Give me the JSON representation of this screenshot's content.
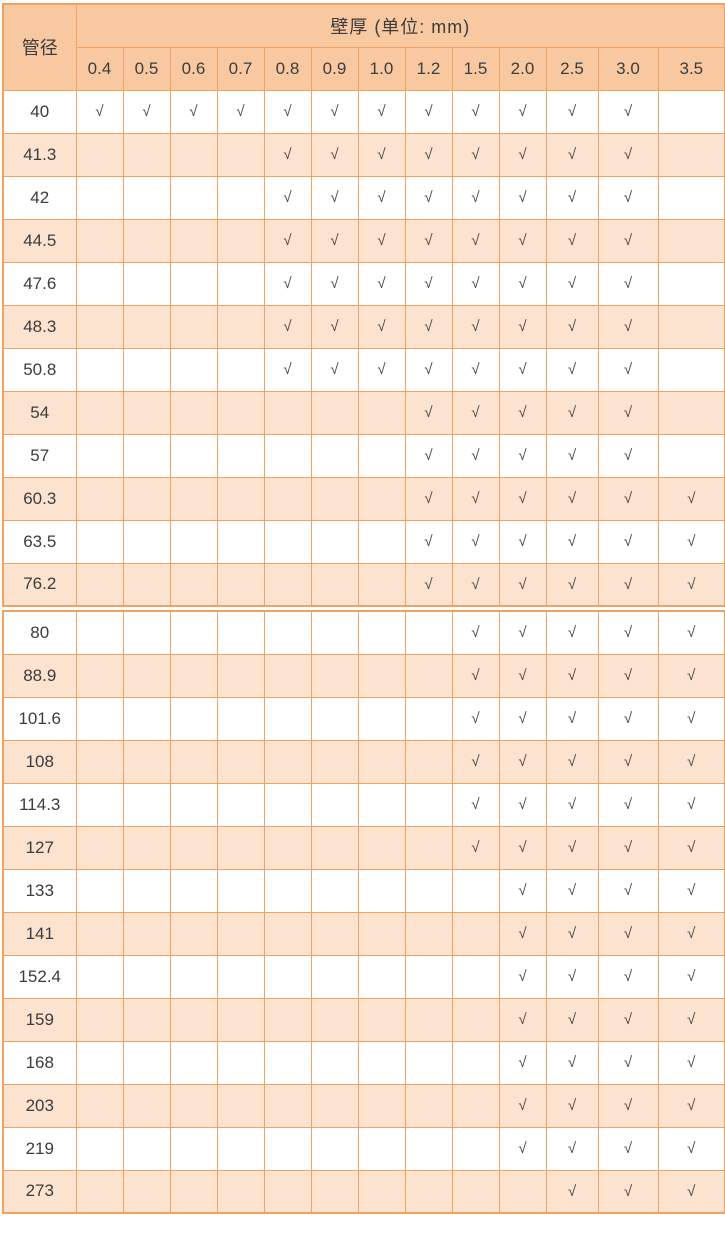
{
  "table": {
    "diameter_header": "管径",
    "thickness_header": "壁厚 (单位: mm)",
    "thickness_values": [
      "0.4",
      "0.5",
      "0.6",
      "0.7",
      "0.8",
      "0.9",
      "1.0",
      "1.2",
      "1.5",
      "2.0",
      "2.5",
      "3.0",
      "3.5"
    ],
    "check_symbol": "√",
    "colors": {
      "header_bg": "#F8C9A1",
      "alt_row_bg": "#FBE3CF",
      "border": "#F0A263",
      "text": "#3C3C3C"
    },
    "sections": [
      {
        "rows": [
          {
            "diameter": "40",
            "checks": [
              1,
              1,
              1,
              1,
              1,
              1,
              1,
              1,
              1,
              1,
              1,
              1,
              0
            ]
          },
          {
            "diameter": "41.3",
            "checks": [
              0,
              0,
              0,
              0,
              1,
              1,
              1,
              1,
              1,
              1,
              1,
              1,
              0
            ]
          },
          {
            "diameter": "42",
            "checks": [
              0,
              0,
              0,
              0,
              1,
              1,
              1,
              1,
              1,
              1,
              1,
              1,
              0
            ]
          },
          {
            "diameter": "44.5",
            "checks": [
              0,
              0,
              0,
              0,
              1,
              1,
              1,
              1,
              1,
              1,
              1,
              1,
              0
            ]
          },
          {
            "diameter": "47.6",
            "checks": [
              0,
              0,
              0,
              0,
              1,
              1,
              1,
              1,
              1,
              1,
              1,
              1,
              0
            ]
          },
          {
            "diameter": "48.3",
            "checks": [
              0,
              0,
              0,
              0,
              1,
              1,
              1,
              1,
              1,
              1,
              1,
              1,
              0
            ]
          },
          {
            "diameter": "50.8",
            "checks": [
              0,
              0,
              0,
              0,
              1,
              1,
              1,
              1,
              1,
              1,
              1,
              1,
              0
            ]
          },
          {
            "diameter": "54",
            "checks": [
              0,
              0,
              0,
              0,
              0,
              0,
              0,
              1,
              1,
              1,
              1,
              1,
              0
            ]
          },
          {
            "diameter": "57",
            "checks": [
              0,
              0,
              0,
              0,
              0,
              0,
              0,
              1,
              1,
              1,
              1,
              1,
              0
            ]
          },
          {
            "diameter": "60.3",
            "checks": [
              0,
              0,
              0,
              0,
              0,
              0,
              0,
              1,
              1,
              1,
              1,
              1,
              1
            ]
          },
          {
            "diameter": "63.5",
            "checks": [
              0,
              0,
              0,
              0,
              0,
              0,
              0,
              1,
              1,
              1,
              1,
              1,
              1
            ]
          },
          {
            "diameter": "76.2",
            "checks": [
              0,
              0,
              0,
              0,
              0,
              0,
              0,
              1,
              1,
              1,
              1,
              1,
              1
            ]
          }
        ]
      },
      {
        "rows": [
          {
            "diameter": "80",
            "checks": [
              0,
              0,
              0,
              0,
              0,
              0,
              0,
              0,
              1,
              1,
              1,
              1,
              1
            ]
          },
          {
            "diameter": "88.9",
            "checks": [
              0,
              0,
              0,
              0,
              0,
              0,
              0,
              0,
              1,
              1,
              1,
              1,
              1
            ]
          },
          {
            "diameter": "101.6",
            "checks": [
              0,
              0,
              0,
              0,
              0,
              0,
              0,
              0,
              1,
              1,
              1,
              1,
              1
            ]
          },
          {
            "diameter": "108",
            "checks": [
              0,
              0,
              0,
              0,
              0,
              0,
              0,
              0,
              1,
              1,
              1,
              1,
              1
            ]
          },
          {
            "diameter": "114.3",
            "checks": [
              0,
              0,
              0,
              0,
              0,
              0,
              0,
              0,
              1,
              1,
              1,
              1,
              1
            ]
          },
          {
            "diameter": "127",
            "checks": [
              0,
              0,
              0,
              0,
              0,
              0,
              0,
              0,
              1,
              1,
              1,
              1,
              1
            ]
          },
          {
            "diameter": "133",
            "checks": [
              0,
              0,
              0,
              0,
              0,
              0,
              0,
              0,
              0,
              1,
              1,
              1,
              1
            ]
          },
          {
            "diameter": "141",
            "checks": [
              0,
              0,
              0,
              0,
              0,
              0,
              0,
              0,
              0,
              1,
              1,
              1,
              1
            ]
          },
          {
            "diameter": "152.4",
            "checks": [
              0,
              0,
              0,
              0,
              0,
              0,
              0,
              0,
              0,
              1,
              1,
              1,
              1
            ]
          },
          {
            "diameter": "159",
            "checks": [
              0,
              0,
              0,
              0,
              0,
              0,
              0,
              0,
              0,
              1,
              1,
              1,
              1
            ]
          },
          {
            "diameter": "168",
            "checks": [
              0,
              0,
              0,
              0,
              0,
              0,
              0,
              0,
              0,
              1,
              1,
              1,
              1
            ]
          },
          {
            "diameter": "203",
            "checks": [
              0,
              0,
              0,
              0,
              0,
              0,
              0,
              0,
              0,
              1,
              1,
              1,
              1
            ]
          },
          {
            "diameter": "219",
            "checks": [
              0,
              0,
              0,
              0,
              0,
              0,
              0,
              0,
              0,
              1,
              1,
              1,
              1
            ]
          },
          {
            "diameter": "273",
            "checks": [
              0,
              0,
              0,
              0,
              0,
              0,
              0,
              0,
              0,
              0,
              1,
              1,
              1
            ]
          }
        ]
      }
    ]
  }
}
